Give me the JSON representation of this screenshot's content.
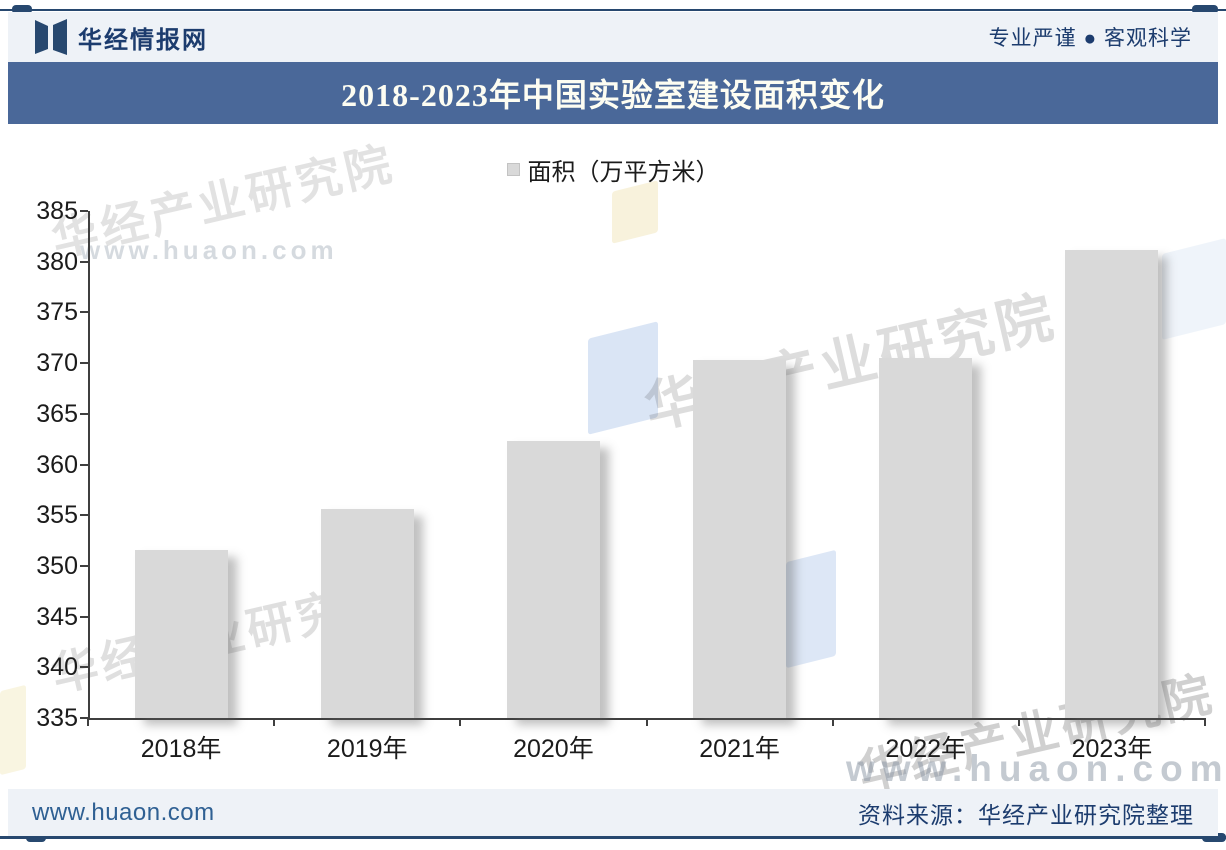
{
  "header": {
    "site_name": "华经情报网",
    "slogan": "专业严谨 ● 客观科学",
    "logo_icon": "huajing-open-book-logo"
  },
  "title_bar": {
    "title": "2018-2023年中国实验室建设面积变化"
  },
  "chart_data": {
    "type": "bar",
    "title": "2018-2023年中国实验室建设面积变化",
    "legend": [
      {
        "label": "面积（万平方米）",
        "swatch_color": "#d9d9d9"
      }
    ],
    "legend_position": "top-center",
    "categories": [
      "2018年",
      "2019年",
      "2020年",
      "2021年",
      "2022年",
      "2023年"
    ],
    "series": [
      {
        "name": "面积（万平方米）",
        "values": [
          351.6,
          355.6,
          362.3,
          370.3,
          370.5,
          381.2
        ]
      }
    ],
    "xlabel": "",
    "ylabel": "",
    "ylim": [
      335,
      385
    ],
    "ytick_step": 5,
    "yticks": [
      335,
      340,
      345,
      350,
      355,
      360,
      365,
      370,
      375,
      380,
      385
    ],
    "grid": false,
    "bar_color": "#d9d9d9"
  },
  "watermarks": {
    "brand": "华经产业研究院",
    "url": "www.huaon.com"
  },
  "footer": {
    "url": "www.huaon.com",
    "source": "资料来源：华经产业研究院整理"
  },
  "colors": {
    "title_bar_bg": "#4a6899",
    "title_text": "#fdfdf2",
    "band_bg": "#eef2f7",
    "navy": "#1c3c6e",
    "rule": "#27486f",
    "bar_fill": "#d9d9d9",
    "axis": "#3f3f3f",
    "footer_url": "#2f6093"
  }
}
